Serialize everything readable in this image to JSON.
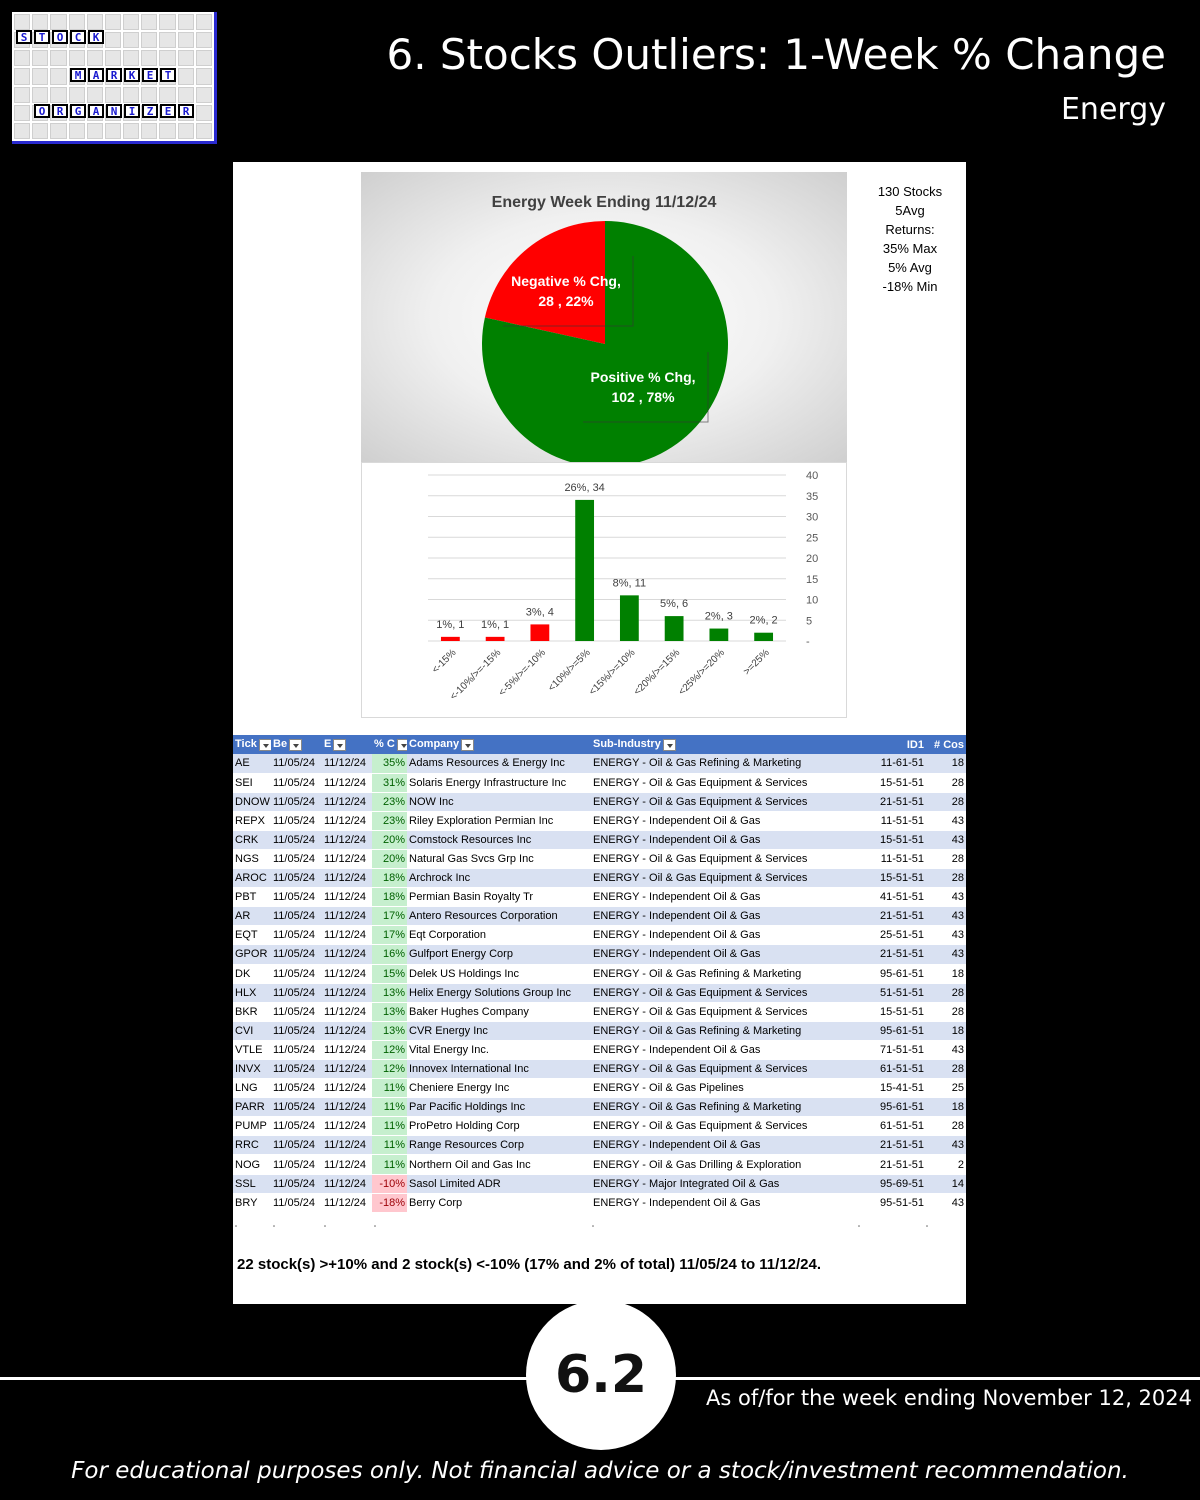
{
  "header": {
    "title": "6. Stocks Outliers: 1-Week % Change",
    "subtitle": "Energy"
  },
  "logo": {
    "word1": [
      "S",
      "T",
      "O",
      "C",
      "K"
    ],
    "word2": [
      "M",
      "A",
      "R",
      "K",
      "E",
      "T"
    ],
    "word3": [
      "O",
      "R",
      "G",
      "A",
      "N",
      "I",
      "Z",
      "E",
      "R"
    ]
  },
  "side_note": {
    "lines": [
      "130 Stocks",
      "5Avg",
      "Returns:",
      "35% Max",
      "5% Avg",
      "-18% Min"
    ]
  },
  "chart_data": [
    {
      "type": "pie",
      "title": "Energy Week Ending 11/12/24",
      "slices": [
        {
          "label_line1": "Negative % Chg,",
          "label_line2": "28 , 22%",
          "count": 28,
          "percent": 22,
          "color": "#ff0000"
        },
        {
          "label_line1": "Positive % Chg,",
          "label_line2": "102 , 78%",
          "count": 102,
          "percent": 78,
          "color": "#008000"
        }
      ]
    },
    {
      "type": "bar",
      "categories": [
        "<-15%",
        "<-10%/>=-15%",
        "<-5%/>=-10%",
        "<10%/>=5%",
        "<15%/>=10%",
        "<20%/>=15%",
        "<25%/>=20%",
        ">=25%"
      ],
      "values": [
        1,
        1,
        4,
        34,
        11,
        6,
        3,
        2
      ],
      "data_labels": [
        "1%,  1",
        "1%,  1",
        "3%,  4",
        "26%,  34",
        "8%,  11",
        "5%,  6",
        "2%,  3",
        "2%,  2"
      ],
      "colors": [
        "#ff0000",
        "#ff0000",
        "#ff0000",
        "#008000",
        "#008000",
        "#008000",
        "#008000",
        "#008000"
      ],
      "ylim": [
        0,
        40
      ],
      "yticks": [
        "40",
        "35",
        "30",
        "25",
        "20",
        "15",
        "10",
        "5",
        "-"
      ],
      "grid": true,
      "y_axis_side": "right"
    }
  ],
  "table": {
    "headers": [
      "Tick",
      "Be",
      "E",
      "% C",
      "Company",
      "Sub-Industry",
      "ID1",
      "# Cos"
    ],
    "rows": [
      [
        "AE",
        "11/05/24",
        "11/12/24",
        "35%",
        "Adams Resources & Energy Inc",
        "ENERGY - Oil & Gas Refining & Marketing",
        "11-61-51",
        "18"
      ],
      [
        "SEI",
        "11/05/24",
        "11/12/24",
        "31%",
        "Solaris Energy Infrastructure Inc",
        "ENERGY - Oil & Gas Equipment & Services",
        "15-51-51",
        "28"
      ],
      [
        "DNOW",
        "11/05/24",
        "11/12/24",
        "23%",
        "NOW Inc",
        "ENERGY - Oil & Gas Equipment & Services",
        "21-51-51",
        "28"
      ],
      [
        "REPX",
        "11/05/24",
        "11/12/24",
        "23%",
        "Riley Exploration Permian Inc",
        "ENERGY - Independent Oil & Gas",
        "11-51-51",
        "43"
      ],
      [
        "CRK",
        "11/05/24",
        "11/12/24",
        "20%",
        "Comstock Resources Inc",
        "ENERGY - Independent Oil & Gas",
        "15-51-51",
        "43"
      ],
      [
        "NGS",
        "11/05/24",
        "11/12/24",
        "20%",
        "Natural Gas Svcs Grp Inc",
        "ENERGY - Oil & Gas Equipment & Services",
        "11-51-51",
        "28"
      ],
      [
        "AROC",
        "11/05/24",
        "11/12/24",
        "18%",
        "Archrock Inc",
        "ENERGY - Oil & Gas Equipment & Services",
        "15-51-51",
        "28"
      ],
      [
        "PBT",
        "11/05/24",
        "11/12/24",
        "18%",
        "Permian Basin Royalty Tr",
        "ENERGY - Independent Oil & Gas",
        "41-51-51",
        "43"
      ],
      [
        "AR",
        "11/05/24",
        "11/12/24",
        "17%",
        "Antero Resources Corporation",
        "ENERGY - Independent Oil & Gas",
        "21-51-51",
        "43"
      ],
      [
        "EQT",
        "11/05/24",
        "11/12/24",
        "17%",
        "Eqt Corporation",
        "ENERGY - Independent Oil & Gas",
        "25-51-51",
        "43"
      ],
      [
        "GPOR",
        "11/05/24",
        "11/12/24",
        "16%",
        "Gulfport Energy Corp",
        "ENERGY - Independent Oil & Gas",
        "21-51-51",
        "43"
      ],
      [
        "DK",
        "11/05/24",
        "11/12/24",
        "15%",
        "Delek US Holdings Inc",
        "ENERGY - Oil & Gas Refining & Marketing",
        "95-61-51",
        "18"
      ],
      [
        "HLX",
        "11/05/24",
        "11/12/24",
        "13%",
        "Helix Energy Solutions Group Inc",
        "ENERGY - Oil & Gas Equipment & Services",
        "51-51-51",
        "28"
      ],
      [
        "BKR",
        "11/05/24",
        "11/12/24",
        "13%",
        "Baker Hughes Company",
        "ENERGY - Oil & Gas Equipment & Services",
        "15-51-51",
        "28"
      ],
      [
        "CVI",
        "11/05/24",
        "11/12/24",
        "13%",
        "CVR Energy Inc",
        "ENERGY - Oil & Gas Refining & Marketing",
        "95-61-51",
        "18"
      ],
      [
        "VTLE",
        "11/05/24",
        "11/12/24",
        "12%",
        "Vital Energy Inc.",
        "ENERGY - Independent Oil & Gas",
        "71-51-51",
        "43"
      ],
      [
        "INVX",
        "11/05/24",
        "11/12/24",
        "12%",
        "Innovex International Inc",
        "ENERGY - Oil & Gas Equipment & Services",
        "61-51-51",
        "28"
      ],
      [
        "LNG",
        "11/05/24",
        "11/12/24",
        "11%",
        "Cheniere Energy Inc",
        "ENERGY - Oil & Gas Pipelines",
        "15-41-51",
        "25"
      ],
      [
        "PARR",
        "11/05/24",
        "11/12/24",
        "11%",
        "Par Pacific Holdings Inc",
        "ENERGY - Oil & Gas Refining & Marketing",
        "95-61-51",
        "18"
      ],
      [
        "PUMP",
        "11/05/24",
        "11/12/24",
        "11%",
        "ProPetro Holding Corp",
        "ENERGY - Oil & Gas Equipment & Services",
        "61-51-51",
        "28"
      ],
      [
        "RRC",
        "11/05/24",
        "11/12/24",
        "11%",
        "Range Resources Corp",
        "ENERGY - Independent Oil & Gas",
        "21-51-51",
        "43"
      ],
      [
        "NOG",
        "11/05/24",
        "11/12/24",
        "11%",
        "Northern Oil and Gas Inc",
        "ENERGY - Oil & Gas Drilling & Exploration",
        "21-51-51",
        "2"
      ],
      [
        "SSL",
        "11/05/24",
        "11/12/24",
        "-10%",
        "Sasol Limited ADR",
        "ENERGY - Major Integrated Oil & Gas",
        "95-69-51",
        "14"
      ],
      [
        "BRY",
        "11/05/24",
        "11/12/24",
        "-18%",
        "Berry Corp",
        "ENERGY - Independent Oil & Gas",
        "95-51-51",
        "43"
      ]
    ]
  },
  "summary": "22 stock(s) >+10% and 2 stock(s) <-10% (17% and 2% of total) 11/05/24 to 11/12/24.",
  "footer": {
    "badge": "6.2",
    "as_of": "As of/for the week ending November 12, 2024",
    "disclaimer": "For educational purposes only. Not financial advice or a stock/investment recommendation."
  },
  "colors": {
    "header_blue": "#4472c4",
    "positive_green": "#008000",
    "negative_red": "#ff0000"
  }
}
